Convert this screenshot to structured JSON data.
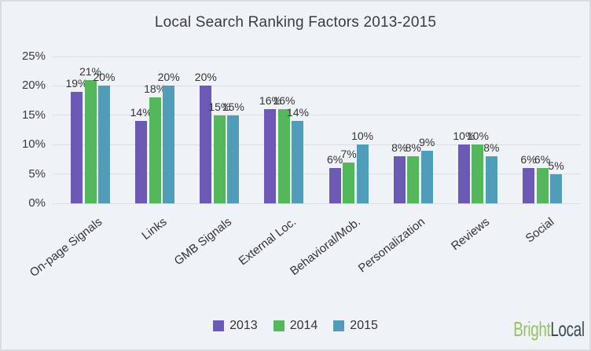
{
  "chart_data": {
    "type": "bar",
    "title": "Local Search Ranking Factors 2013-2015",
    "categories": [
      "On-page Signals",
      "Links",
      "GMB Signals",
      "External Loc.",
      "Behavioral/Mob.",
      "Personalization",
      "Reviews",
      "Social"
    ],
    "series": [
      {
        "name": "2013",
        "color": "#6C58B5",
        "values": [
          19,
          14,
          20,
          16,
          6,
          8,
          10,
          6
        ]
      },
      {
        "name": "2014",
        "color": "#55B75C",
        "values": [
          21,
          18,
          15,
          16,
          7,
          8,
          10,
          6
        ]
      },
      {
        "name": "2015",
        "color": "#4F9DB8",
        "values": [
          20,
          20,
          15,
          14,
          10,
          9,
          8,
          5
        ]
      }
    ],
    "value_suffix": "%",
    "xlabel": "",
    "ylabel": "",
    "ylim": [
      0,
      25
    ],
    "ytick_step": 5,
    "ytick_labels": [
      "0%",
      "5%",
      "10%",
      "15%",
      "20%",
      "25%"
    ],
    "grid": true,
    "legend_position": "bottom"
  },
  "logo": {
    "bright": "Bright",
    "local": "Local",
    "bright_color": "#97C353",
    "local_color": "#3E4B57"
  },
  "colors": {
    "background": "#EFF3F8",
    "border": "#D8DCDF",
    "gridline": "#D9DEE2",
    "text": "#3A3A3A"
  }
}
